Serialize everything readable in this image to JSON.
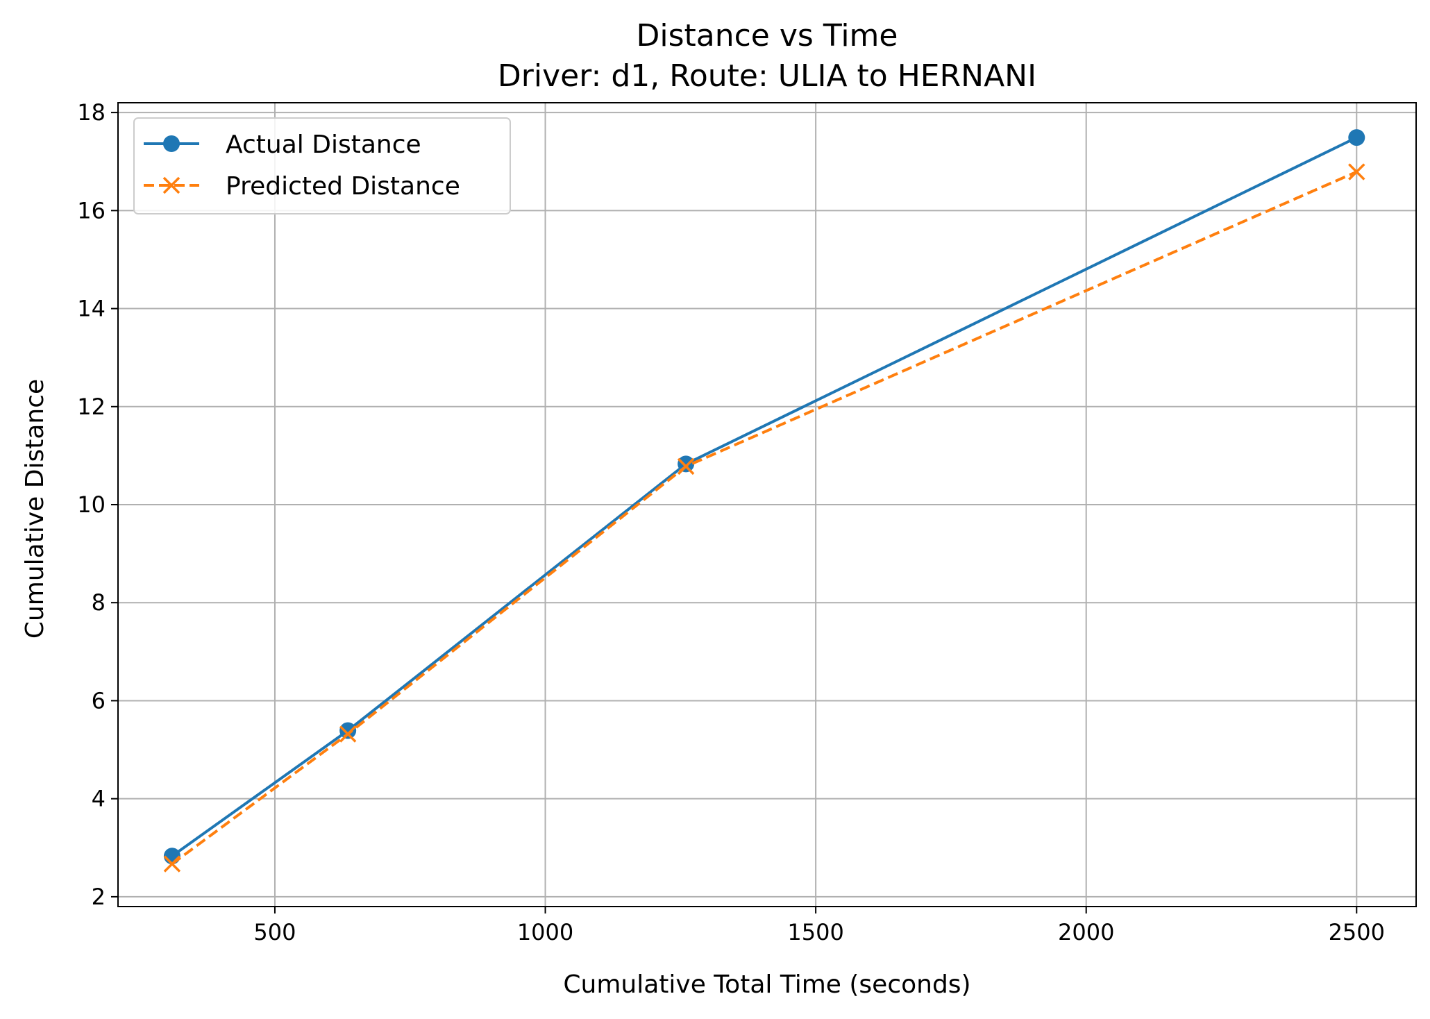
{
  "chart_data": {
    "type": "line",
    "title": "Distance vs Time",
    "subtitle": "Driver: d1, Route: ULIA to HERNANI",
    "xlabel": "Cumulative Total Time (seconds)",
    "ylabel": "Cumulative Distance",
    "xlim": [
      210,
      2610
    ],
    "ylim": [
      1.8,
      18.2
    ],
    "xticks": [
      500,
      1000,
      1500,
      2000,
      2500
    ],
    "yticks": [
      2,
      4,
      6,
      8,
      10,
      12,
      14,
      16,
      18
    ],
    "grid": true,
    "legend_position": "top-left",
    "series": [
      {
        "name": "Actual Distance",
        "color": "#1f77b4",
        "line_style": "solid",
        "marker": "circle",
        "x": [
          310,
          635,
          1260,
          2500
        ],
        "y": [
          2.83,
          5.39,
          10.83,
          17.49
        ]
      },
      {
        "name": "Predicted Distance",
        "color": "#ff7f0e",
        "line_style": "dashed",
        "marker": "x",
        "x": [
          310,
          635,
          1260,
          2500
        ],
        "y": [
          2.67,
          5.32,
          10.78,
          16.79
        ]
      }
    ]
  }
}
